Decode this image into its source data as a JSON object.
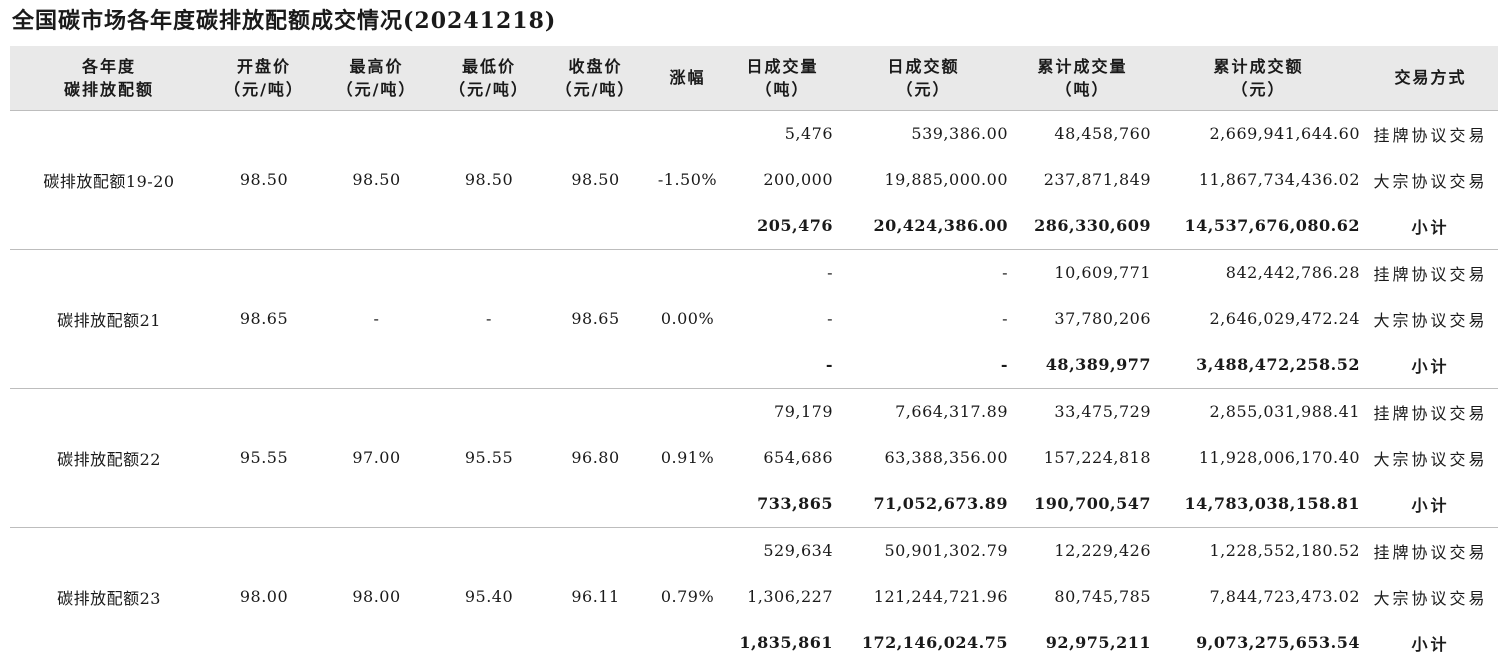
{
  "title": "全国碳市场各年度碳排放配额成交情况(20241218)",
  "headers": [
    [
      "各年度",
      "碳排放配额"
    ],
    [
      "开盘价",
      "（元/吨）"
    ],
    [
      "最高价",
      "（元/吨）"
    ],
    [
      "最低价",
      "（元/吨）"
    ],
    [
      "收盘价",
      "（元/吨）"
    ],
    [
      "涨幅",
      ""
    ],
    [
      "日成交量",
      "（吨）"
    ],
    [
      "日成交额",
      "（元）"
    ],
    [
      "累计成交量",
      "（吨）"
    ],
    [
      "累计成交额",
      "（元）"
    ],
    [
      "交易方式",
      ""
    ]
  ],
  "groups": [
    {
      "name": "碳排放配额19-20",
      "open": "98.50",
      "high": "98.50",
      "low": "98.50",
      "close": "98.50",
      "change": "-1.50%",
      "rows": [
        {
          "vol": "5,476",
          "amt": "539,386.00",
          "cum_vol": "48,458,760",
          "cum_amt": "2,669,941,644.60",
          "type": "挂牌协议交易"
        },
        {
          "vol": "200,000",
          "amt": "19,885,000.00",
          "cum_vol": "237,871,849",
          "cum_amt": "11,867,734,436.02",
          "type": "大宗协议交易"
        },
        {
          "vol": "205,476",
          "amt": "20,424,386.00",
          "cum_vol": "286,330,609",
          "cum_amt": "14,537,676,080.62",
          "type": "小计"
        }
      ]
    },
    {
      "name": "碳排放配额21",
      "open": "98.65",
      "high": "-",
      "low": "-",
      "close": "98.65",
      "change": "0.00%",
      "rows": [
        {
          "vol": "-",
          "amt": "-",
          "cum_vol": "10,609,771",
          "cum_amt": "842,442,786.28",
          "type": "挂牌协议交易"
        },
        {
          "vol": "-",
          "amt": "-",
          "cum_vol": "37,780,206",
          "cum_amt": "2,646,029,472.24",
          "type": "大宗协议交易"
        },
        {
          "vol": "-",
          "amt": "-",
          "cum_vol": "48,389,977",
          "cum_amt": "3,488,472,258.52",
          "type": "小计"
        }
      ]
    },
    {
      "name": "碳排放配额22",
      "open": "95.55",
      "high": "97.00",
      "low": "95.55",
      "close": "96.80",
      "change": "0.91%",
      "rows": [
        {
          "vol": "79,179",
          "amt": "7,664,317.89",
          "cum_vol": "33,475,729",
          "cum_amt": "2,855,031,988.41",
          "type": "挂牌协议交易"
        },
        {
          "vol": "654,686",
          "amt": "63,388,356.00",
          "cum_vol": "157,224,818",
          "cum_amt": "11,928,006,170.40",
          "type": "大宗协议交易"
        },
        {
          "vol": "733,865",
          "amt": "71,052,673.89",
          "cum_vol": "190,700,547",
          "cum_amt": "14,783,038,158.81",
          "type": "小计"
        }
      ]
    },
    {
      "name": "碳排放配额23",
      "open": "98.00",
      "high": "98.00",
      "low": "95.40",
      "close": "96.11",
      "change": "0.79%",
      "rows": [
        {
          "vol": "529,634",
          "amt": "50,901,302.79",
          "cum_vol": "12,229,426",
          "cum_amt": "1,228,552,180.52",
          "type": "挂牌协议交易"
        },
        {
          "vol": "1,306,227",
          "amt": "121,244,721.96",
          "cum_vol": "80,745,785",
          "cum_amt": "7,844,723,473.02",
          "type": "大宗协议交易"
        },
        {
          "vol": "1,835,861",
          "amt": "172,146,024.75",
          "cum_vol": "92,975,211",
          "cum_amt": "9,073,275,653.54",
          "type": "小计"
        }
      ]
    }
  ]
}
